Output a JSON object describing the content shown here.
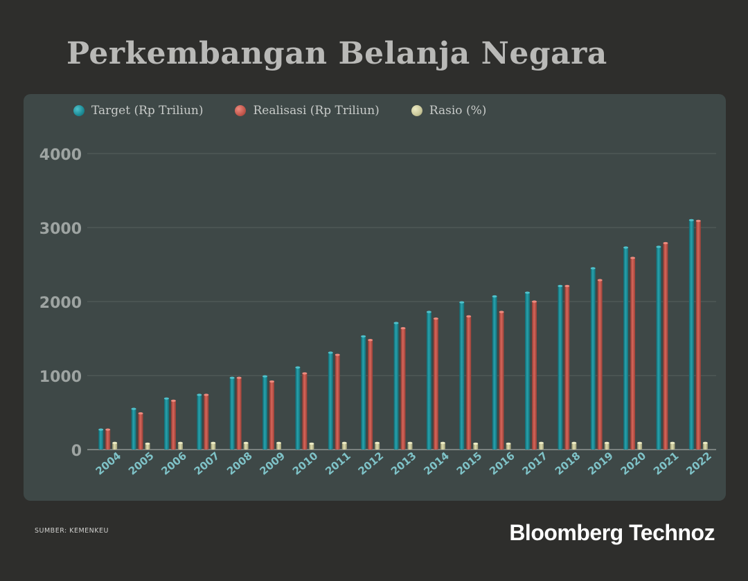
{
  "title": "Perkembangan Belanja Negara",
  "source": "SUMBER: KEMENKEU",
  "brand": "Bloomberg Technoz",
  "colors": {
    "background": "#2e2e2c",
    "panel": "#3e4847",
    "target": "#1d8c97",
    "realisasi": "#c2574c",
    "rasio": "#c9c79a"
  },
  "chart_data": {
    "type": "bar",
    "title": "Perkembangan Belanja Negara",
    "xlabel": "",
    "ylabel": "",
    "ylim": [
      0,
      4000
    ],
    "yticks": [
      0,
      1000,
      2000,
      3000,
      4000
    ],
    "grid": true,
    "legend_position": "top-left",
    "categories": [
      "2004",
      "2005",
      "2006",
      "2007",
      "2008",
      "2009",
      "2010",
      "2011",
      "2012",
      "2013",
      "2014",
      "2015",
      "2016",
      "2017",
      "2018",
      "2019",
      "2020",
      "2021",
      "2022"
    ],
    "series": [
      {
        "name": "Target (Rp Triliun)",
        "color": "#1d8c97",
        "values": [
          270,
          550,
          690,
          740,
          970,
          990,
          1110,
          1310,
          1530,
          1710,
          1860,
          1990,
          2070,
          2120,
          2210,
          2450,
          2730,
          2740,
          3100
        ]
      },
      {
        "name": "Realisasi (Rp Triliun)",
        "color": "#c2574c",
        "values": [
          270,
          490,
          660,
          740,
          970,
          920,
          1030,
          1280,
          1480,
          1640,
          1770,
          1800,
          1860,
          2000,
          2210,
          2290,
          2590,
          2790,
          3090
        ]
      },
      {
        "name": "Rasio (%)",
        "color": "#c9c79a",
        "values": [
          90,
          80,
          90,
          90,
          90,
          90,
          80,
          90,
          90,
          90,
          90,
          80,
          80,
          90,
          90,
          90,
          90,
          90,
          90
        ]
      }
    ]
  }
}
